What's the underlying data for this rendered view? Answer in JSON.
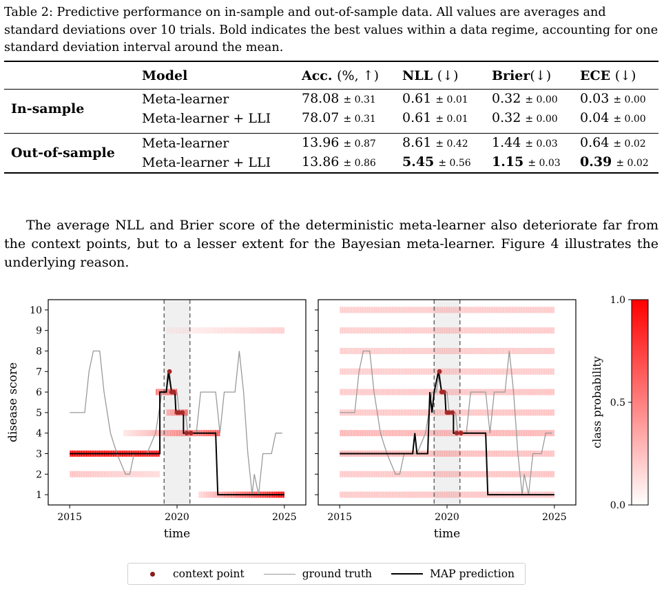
{
  "caption": {
    "label": "Table 2:",
    "text": "Predictive performance on in-sample and out-of-sample data. All values are averages and standard deviations over 10 trials. Bold indicates the best values within a data regime, accounting for one standard deviation interval around the mean."
  },
  "table": {
    "headers": {
      "model": "Model",
      "acc": "Acc.",
      "acc_sub": "(%, ↑)",
      "nll": "NLL",
      "nll_sub": "(↓)",
      "brier": "Brier",
      "brier_sub": "(↓)",
      "ece": "ECE",
      "ece_sub": "(↓)"
    },
    "groups": [
      {
        "name": "In-sample",
        "rows": [
          {
            "model": "Meta-learner",
            "acc": "78.08",
            "acc_sd": "± 0.31",
            "nll": "0.61",
            "nll_sd": "± 0.01",
            "brier": "0.32",
            "brier_sd": "± 0.00",
            "ece": "0.03",
            "ece_sd": "± 0.00"
          },
          {
            "model": "Meta-learner + LLI",
            "acc": "78.07",
            "acc_sd": "± 0.31",
            "nll": "0.61",
            "nll_sd": "± 0.01",
            "brier": "0.32",
            "brier_sd": "± 0.00",
            "ece": "0.04",
            "ece_sd": "± 0.00"
          }
        ]
      },
      {
        "name": "Out-of-sample",
        "rows": [
          {
            "model": "Meta-learner",
            "acc": "13.96",
            "acc_sd": "± 0.87",
            "nll": "8.61",
            "nll_sd": "± 0.42",
            "brier": "1.44",
            "brier_sd": "± 0.03",
            "ece": "0.64",
            "ece_sd": "± 0.02"
          },
          {
            "model": "Meta-learner + LLI",
            "acc": "13.86",
            "acc_sd": "± 0.86",
            "nll": "5.45",
            "nll_sd": "± 0.56",
            "brier": "1.15",
            "brier_sd": "± 0.03",
            "ece": "0.39",
            "ece_sd": "± 0.02"
          }
        ]
      }
    ]
  },
  "paragraph": "The average NLL and Brier score of the deterministic meta-learner also deteriorate far from the context points, but to a lesser extent for the Bayesian meta-learner. Figure 4 illustrates the underlying reason.",
  "legend": {
    "context": "context point",
    "truth": "ground truth",
    "map": "MAP prediction"
  },
  "colors": {
    "accent": "#ff0000",
    "context": "#8b1a1a",
    "truth": "#999999",
    "map": "#000000"
  },
  "chart_data": {
    "type": "line",
    "xlabel": "time",
    "ylabel": "disease score",
    "xticks": [
      "2015",
      "2020",
      "2025"
    ],
    "xlim": [
      2015,
      2025
    ],
    "yticks": [
      "1",
      "2",
      "3",
      "4",
      "5",
      "6",
      "7",
      "8",
      "9",
      "10"
    ],
    "ylim": [
      0.5,
      10.5
    ],
    "context_window": [
      2019.4,
      2020.6
    ],
    "colorbar": {
      "label": "class probability",
      "ticks": [
        "0.0",
        "0.5",
        "1.0"
      ]
    },
    "ground_truth": [
      [
        2015,
        5
      ],
      [
        2015.7,
        5
      ],
      [
        2015.9,
        7
      ],
      [
        2016.1,
        8
      ],
      [
        2016.4,
        8
      ],
      [
        2016.6,
        6
      ],
      [
        2016.9,
        4
      ],
      [
        2017.2,
        3
      ],
      [
        2017.6,
        2
      ],
      [
        2017.8,
        2
      ],
      [
        2018,
        3
      ],
      [
        2018.6,
        3
      ],
      [
        2019.0,
        4
      ],
      [
        2019.3,
        6
      ],
      [
        2019.5,
        6
      ],
      [
        2019.65,
        7
      ],
      [
        2019.75,
        6
      ],
      [
        2020.0,
        6
      ],
      [
        2020.1,
        5
      ],
      [
        2020.4,
        5
      ],
      [
        2020.5,
        4
      ],
      [
        2020.9,
        4
      ],
      [
        2021.1,
        6
      ],
      [
        2021.8,
        6
      ],
      [
        2022.0,
        4
      ],
      [
        2022.2,
        6
      ],
      [
        2022.7,
        6
      ],
      [
        2022.9,
        8
      ],
      [
        2023.1,
        6
      ],
      [
        2023.3,
        3
      ],
      [
        2023.5,
        1
      ],
      [
        2023.6,
        2
      ],
      [
        2023.8,
        1
      ],
      [
        2024.0,
        3
      ],
      [
        2024.4,
        3
      ],
      [
        2024.6,
        4
      ],
      [
        2024.9,
        4
      ]
    ],
    "context_points": [
      [
        2019.65,
        7
      ],
      [
        2019.75,
        6
      ],
      [
        2019.85,
        6
      ],
      [
        2020.0,
        5
      ],
      [
        2020.1,
        5
      ],
      [
        2020.25,
        5
      ],
      [
        2020.45,
        4
      ],
      [
        2020.65,
        4
      ]
    ],
    "panels": [
      {
        "map": [
          [
            2015,
            3
          ],
          [
            2019.2,
            3
          ],
          [
            2019.2,
            6
          ],
          [
            2019.5,
            6
          ],
          [
            2019.6,
            7
          ],
          [
            2019.75,
            6
          ],
          [
            2019.9,
            6
          ],
          [
            2019.95,
            5
          ],
          [
            2020.3,
            5
          ],
          [
            2020.3,
            4
          ],
          [
            2021.8,
            4
          ],
          [
            2021.9,
            1
          ],
          [
            2025,
            1
          ]
        ],
        "prob_rows": [
          {
            "y": 1,
            "x0": 2021.0,
            "x1": 2025,
            "p": [
              0.15,
              1
            ]
          },
          {
            "y": 2,
            "x0": 2015,
            "x1": 2019.2,
            "p": [
              0.25,
              0.15
            ]
          },
          {
            "y": 3,
            "x0": 2015,
            "x1": 2019.2,
            "p": [
              1,
              0.9
            ]
          },
          {
            "y": 4,
            "x0": 2017.5,
            "x1": 2022,
            "p": [
              0.1,
              0.7
            ]
          },
          {
            "y": 5,
            "x0": 2019.5,
            "x1": 2020.5,
            "p": [
              0.3,
              0.6
            ]
          },
          {
            "y": 6,
            "x0": 2019,
            "x1": 2020,
            "p": [
              0.5,
              0.6
            ]
          },
          {
            "y": 9,
            "x0": 2019.5,
            "x1": 2025,
            "p": [
              0.05,
              0.2
            ]
          }
        ]
      },
      {
        "map": [
          [
            2015,
            3
          ],
          [
            2018.4,
            3
          ],
          [
            2018.5,
            4
          ],
          [
            2018.6,
            3
          ],
          [
            2019.1,
            3
          ],
          [
            2019.2,
            6
          ],
          [
            2019.3,
            5
          ],
          [
            2019.4,
            6
          ],
          [
            2019.6,
            7
          ],
          [
            2019.75,
            6
          ],
          [
            2019.9,
            6
          ],
          [
            2019.95,
            5
          ],
          [
            2020.3,
            5
          ],
          [
            2020.3,
            4
          ],
          [
            2021.8,
            4
          ],
          [
            2021.9,
            1
          ],
          [
            2025,
            1
          ]
        ],
        "prob_rows": [
          {
            "y": 1,
            "x0": 2015,
            "x1": 2025,
            "p": [
              0.22,
              0.25
            ]
          },
          {
            "y": 2,
            "x0": 2015,
            "x1": 2025,
            "p": [
              0.22,
              0.25
            ]
          },
          {
            "y": 3,
            "x0": 2015,
            "x1": 2025,
            "p": [
              0.3,
              0.25
            ]
          },
          {
            "y": 4,
            "x0": 2015,
            "x1": 2025,
            "p": [
              0.3,
              0.3
            ]
          },
          {
            "y": 5,
            "x0": 2015,
            "x1": 2025,
            "p": [
              0.22,
              0.25
            ]
          },
          {
            "y": 6,
            "x0": 2015,
            "x1": 2025,
            "p": [
              0.22,
              0.25
            ]
          },
          {
            "y": 7,
            "x0": 2015,
            "x1": 2025,
            "p": [
              0.2,
              0.22
            ]
          },
          {
            "y": 8,
            "x0": 2015,
            "x1": 2025,
            "p": [
              0.2,
              0.22
            ]
          },
          {
            "y": 9,
            "x0": 2015,
            "x1": 2025,
            "p": [
              0.2,
              0.22
            ]
          },
          {
            "y": 10,
            "x0": 2015,
            "x1": 2025,
            "p": [
              0.2,
              0.22
            ]
          }
        ]
      }
    ]
  }
}
